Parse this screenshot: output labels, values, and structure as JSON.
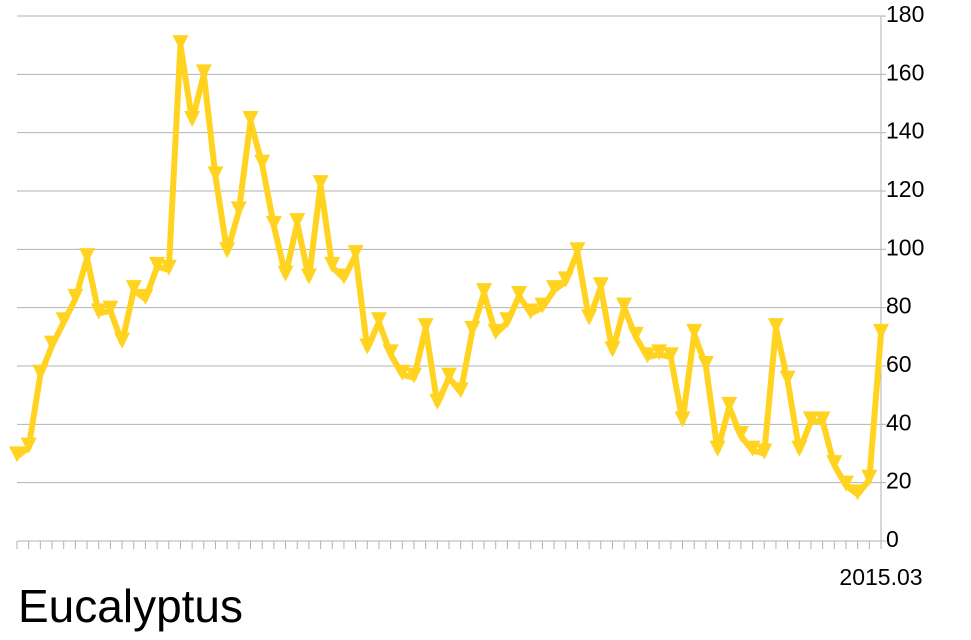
{
  "chart_data": {
    "type": "line",
    "title": "Eucalyptus",
    "categories": [
      null,
      null,
      null,
      null,
      null,
      null,
      null,
      null,
      null,
      null,
      null,
      null,
      null,
      null,
      null,
      null,
      null,
      null,
      null,
      null,
      null,
      null,
      null,
      null,
      null,
      null,
      null,
      null,
      null,
      null,
      null,
      null,
      null,
      null,
      null,
      null,
      null,
      null,
      null,
      null,
      null,
      null,
      null,
      null,
      null,
      null,
      null,
      null,
      null,
      null,
      null,
      null,
      null,
      null,
      null,
      null,
      null,
      null,
      null,
      null,
      null,
      null,
      null,
      null,
      null,
      null,
      null,
      null,
      null,
      null,
      null,
      null,
      null,
      null,
      "2015.03"
    ],
    "series": [
      {
        "name": null,
        "color": "#ffd320",
        "values": [
          29,
          32,
          57,
          67,
          75,
          83,
          97,
          78,
          79,
          68,
          86,
          83,
          94,
          93,
          170,
          144,
          160,
          125,
          99,
          113,
          144,
          129,
          108,
          91,
          109,
          90,
          122,
          94,
          90,
          98,
          66,
          75,
          64,
          57,
          56,
          73,
          47,
          56,
          51,
          72,
          85,
          71,
          75,
          84,
          78,
          80,
          86,
          89,
          99,
          76,
          87,
          65,
          80,
          70,
          63,
          64,
          63,
          41,
          71,
          60,
          31,
          46,
          36,
          31,
          30,
          73,
          55,
          31,
          41,
          41,
          26,
          19,
          16,
          21,
          71
        ]
      }
    ],
    "ylim": [
      0,
      180
    ],
    "yticks": [
      0,
      20,
      40,
      60,
      80,
      100,
      120,
      140,
      160,
      180
    ],
    "grid": true
  }
}
